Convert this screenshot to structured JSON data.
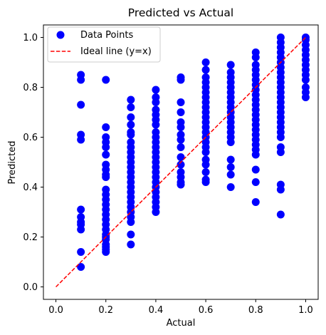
{
  "chart_data": {
    "type": "scatter",
    "title": "Predicted vs Actual",
    "xlabel": "Actual",
    "ylabel": "Predicted",
    "xlim": [
      -0.05,
      1.05
    ],
    "ylim": [
      -0.05,
      1.05
    ],
    "xticks": [
      "0.0",
      "0.2",
      "0.4",
      "0.6",
      "0.8",
      "1.0"
    ],
    "yticks": [
      "0.0",
      "0.2",
      "0.4",
      "0.6",
      "0.8",
      "1.0"
    ],
    "legend_position": "upper-left",
    "series": [
      {
        "name": "Data Points",
        "kind": "scatter",
        "color": "#0000ff",
        "points": [
          [
            0.1,
            0.85
          ],
          [
            0.1,
            0.83
          ],
          [
            0.1,
            0.73
          ],
          [
            0.1,
            0.61
          ],
          [
            0.1,
            0.59
          ],
          [
            0.1,
            0.31
          ],
          [
            0.1,
            0.28
          ],
          [
            0.1,
            0.26
          ],
          [
            0.1,
            0.25
          ],
          [
            0.1,
            0.23
          ],
          [
            0.1,
            0.14
          ],
          [
            0.1,
            0.08
          ],
          [
            0.2,
            0.83
          ],
          [
            0.2,
            0.64
          ],
          [
            0.2,
            0.6
          ],
          [
            0.2,
            0.58
          ],
          [
            0.2,
            0.56
          ],
          [
            0.2,
            0.53
          ],
          [
            0.2,
            0.49
          ],
          [
            0.2,
            0.47
          ],
          [
            0.2,
            0.45
          ],
          [
            0.2,
            0.44
          ],
          [
            0.2,
            0.39
          ],
          [
            0.2,
            0.37
          ],
          [
            0.2,
            0.35
          ],
          [
            0.2,
            0.33
          ],
          [
            0.2,
            0.31
          ],
          [
            0.2,
            0.29
          ],
          [
            0.2,
            0.27
          ],
          [
            0.2,
            0.25
          ],
          [
            0.2,
            0.23
          ],
          [
            0.2,
            0.21
          ],
          [
            0.2,
            0.2
          ],
          [
            0.2,
            0.19
          ],
          [
            0.2,
            0.17
          ],
          [
            0.2,
            0.16
          ],
          [
            0.2,
            0.15
          ],
          [
            0.2,
            0.14
          ],
          [
            0.3,
            0.75
          ],
          [
            0.3,
            0.72
          ],
          [
            0.3,
            0.68
          ],
          [
            0.3,
            0.65
          ],
          [
            0.3,
            0.62
          ],
          [
            0.3,
            0.61
          ],
          [
            0.3,
            0.58
          ],
          [
            0.3,
            0.56
          ],
          [
            0.3,
            0.54
          ],
          [
            0.3,
            0.52
          ],
          [
            0.3,
            0.5
          ],
          [
            0.3,
            0.48
          ],
          [
            0.3,
            0.46
          ],
          [
            0.3,
            0.44
          ],
          [
            0.3,
            0.42
          ],
          [
            0.3,
            0.4
          ],
          [
            0.3,
            0.38
          ],
          [
            0.3,
            0.36
          ],
          [
            0.3,
            0.34
          ],
          [
            0.3,
            0.32
          ],
          [
            0.3,
            0.3
          ],
          [
            0.3,
            0.28
          ],
          [
            0.3,
            0.26
          ],
          [
            0.3,
            0.21
          ],
          [
            0.3,
            0.17
          ],
          [
            0.4,
            0.79
          ],
          [
            0.4,
            0.76
          ],
          [
            0.4,
            0.74
          ],
          [
            0.4,
            0.71
          ],
          [
            0.4,
            0.69
          ],
          [
            0.4,
            0.67
          ],
          [
            0.4,
            0.65
          ],
          [
            0.4,
            0.62
          ],
          [
            0.4,
            0.6
          ],
          [
            0.4,
            0.58
          ],
          [
            0.4,
            0.56
          ],
          [
            0.4,
            0.54
          ],
          [
            0.4,
            0.52
          ],
          [
            0.4,
            0.5
          ],
          [
            0.4,
            0.48
          ],
          [
            0.4,
            0.46
          ],
          [
            0.4,
            0.44
          ],
          [
            0.4,
            0.42
          ],
          [
            0.4,
            0.4
          ],
          [
            0.4,
            0.38
          ],
          [
            0.4,
            0.36
          ],
          [
            0.4,
            0.34
          ],
          [
            0.4,
            0.32
          ],
          [
            0.4,
            0.3
          ],
          [
            0.5,
            0.84
          ],
          [
            0.5,
            0.83
          ],
          [
            0.5,
            0.74
          ],
          [
            0.5,
            0.7
          ],
          [
            0.5,
            0.66
          ],
          [
            0.5,
            0.64
          ],
          [
            0.5,
            0.61
          ],
          [
            0.5,
            0.59
          ],
          [
            0.5,
            0.56
          ],
          [
            0.5,
            0.52
          ],
          [
            0.5,
            0.49
          ],
          [
            0.5,
            0.46
          ],
          [
            0.5,
            0.44
          ],
          [
            0.5,
            0.42
          ],
          [
            0.5,
            0.41
          ],
          [
            0.6,
            0.9
          ],
          [
            0.6,
            0.87
          ],
          [
            0.6,
            0.84
          ],
          [
            0.6,
            0.82
          ],
          [
            0.6,
            0.8
          ],
          [
            0.6,
            0.78
          ],
          [
            0.6,
            0.76
          ],
          [
            0.6,
            0.74
          ],
          [
            0.6,
            0.72
          ],
          [
            0.6,
            0.7
          ],
          [
            0.6,
            0.68
          ],
          [
            0.6,
            0.66
          ],
          [
            0.6,
            0.64
          ],
          [
            0.6,
            0.62
          ],
          [
            0.6,
            0.6
          ],
          [
            0.6,
            0.58
          ],
          [
            0.6,
            0.56
          ],
          [
            0.6,
            0.54
          ],
          [
            0.6,
            0.51
          ],
          [
            0.6,
            0.49
          ],
          [
            0.6,
            0.46
          ],
          [
            0.6,
            0.43
          ],
          [
            0.6,
            0.42
          ],
          [
            0.7,
            0.89
          ],
          [
            0.7,
            0.86
          ],
          [
            0.7,
            0.84
          ],
          [
            0.7,
            0.82
          ],
          [
            0.7,
            0.8
          ],
          [
            0.7,
            0.78
          ],
          [
            0.7,
            0.76
          ],
          [
            0.7,
            0.74
          ],
          [
            0.7,
            0.72
          ],
          [
            0.7,
            0.7
          ],
          [
            0.7,
            0.68
          ],
          [
            0.7,
            0.66
          ],
          [
            0.7,
            0.64
          ],
          [
            0.7,
            0.62
          ],
          [
            0.7,
            0.6
          ],
          [
            0.7,
            0.58
          ],
          [
            0.7,
            0.51
          ],
          [
            0.7,
            0.48
          ],
          [
            0.7,
            0.45
          ],
          [
            0.7,
            0.4
          ],
          [
            0.8,
            0.94
          ],
          [
            0.8,
            0.92
          ],
          [
            0.8,
            0.89
          ],
          [
            0.8,
            0.87
          ],
          [
            0.8,
            0.85
          ],
          [
            0.8,
            0.83
          ],
          [
            0.8,
            0.81
          ],
          [
            0.8,
            0.79
          ],
          [
            0.8,
            0.77
          ],
          [
            0.8,
            0.75
          ],
          [
            0.8,
            0.73
          ],
          [
            0.8,
            0.71
          ],
          [
            0.8,
            0.69
          ],
          [
            0.8,
            0.67
          ],
          [
            0.8,
            0.65
          ],
          [
            0.8,
            0.63
          ],
          [
            0.8,
            0.61
          ],
          [
            0.8,
            0.59
          ],
          [
            0.8,
            0.57
          ],
          [
            0.8,
            0.55
          ],
          [
            0.8,
            0.53
          ],
          [
            0.8,
            0.47
          ],
          [
            0.8,
            0.42
          ],
          [
            0.8,
            0.34
          ],
          [
            0.9,
            1.0
          ],
          [
            0.9,
            0.98
          ],
          [
            0.9,
            0.96
          ],
          [
            0.9,
            0.94
          ],
          [
            0.9,
            0.92
          ],
          [
            0.9,
            0.9
          ],
          [
            0.9,
            0.88
          ],
          [
            0.9,
            0.86
          ],
          [
            0.9,
            0.84
          ],
          [
            0.9,
            0.82
          ],
          [
            0.9,
            0.8
          ],
          [
            0.9,
            0.78
          ],
          [
            0.9,
            0.76
          ],
          [
            0.9,
            0.74
          ],
          [
            0.9,
            0.72
          ],
          [
            0.9,
            0.7
          ],
          [
            0.9,
            0.68
          ],
          [
            0.9,
            0.66
          ],
          [
            0.9,
            0.64
          ],
          [
            0.9,
            0.62
          ],
          [
            0.9,
            0.6
          ],
          [
            0.9,
            0.56
          ],
          [
            0.9,
            0.54
          ],
          [
            0.9,
            0.41
          ],
          [
            0.9,
            0.39
          ],
          [
            0.9,
            0.29
          ],
          [
            1.0,
            1.0
          ],
          [
            1.0,
            0.99
          ],
          [
            1.0,
            0.97
          ],
          [
            1.0,
            0.95
          ],
          [
            1.0,
            0.93
          ],
          [
            1.0,
            0.91
          ],
          [
            1.0,
            0.89
          ],
          [
            1.0,
            0.87
          ],
          [
            1.0,
            0.85
          ],
          [
            1.0,
            0.83
          ],
          [
            1.0,
            0.8
          ],
          [
            1.0,
            0.78
          ],
          [
            1.0,
            0.76
          ]
        ]
      },
      {
        "name": "Ideal line (y=x)",
        "kind": "line",
        "style": "dashed",
        "color": "#ff0000",
        "points": [
          [
            0.0,
            0.0
          ],
          [
            1.0,
            1.0
          ]
        ]
      }
    ]
  }
}
